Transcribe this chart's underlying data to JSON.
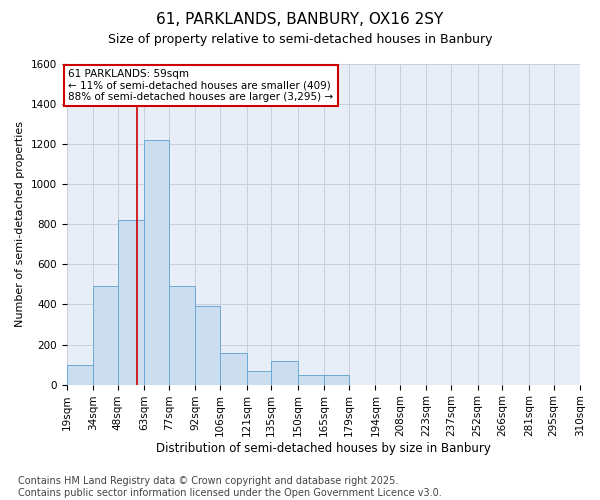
{
  "title": "61, PARKLANDS, BANBURY, OX16 2SY",
  "subtitle": "Size of property relative to semi-detached houses in Banbury",
  "xlabel": "Distribution of semi-detached houses by size in Banbury",
  "ylabel": "Number of semi-detached properties",
  "bar_color": "#ccddf0",
  "bar_edge_color": "#6aaad4",
  "grid_color": "#c8d0de",
  "background_color": "#e8eef8",
  "annotation_text": "61 PARKLANDS: 59sqm\n← 11% of semi-detached houses are smaller (409)\n88% of semi-detached houses are larger (3,295) →",
  "vline_color": "#cc0000",
  "bin_edges": [
    19,
    34,
    48,
    63,
    77,
    92,
    106,
    121,
    135,
    150,
    165,
    179,
    194,
    208,
    223,
    237,
    252,
    266,
    281,
    295,
    310
  ],
  "bin_labels": [
    "19sqm",
    "34sqm",
    "48sqm",
    "63sqm",
    "77sqm",
    "92sqm",
    "106sqm",
    "121sqm",
    "135sqm",
    "150sqm",
    "165sqm",
    "179sqm",
    "194sqm",
    "208sqm",
    "223sqm",
    "237sqm",
    "252sqm",
    "266sqm",
    "281sqm",
    "295sqm",
    "310sqm"
  ],
  "counts": [
    100,
    490,
    820,
    1220,
    490,
    390,
    160,
    70,
    120,
    50,
    50,
    0,
    0,
    0,
    0,
    0,
    0,
    0,
    0,
    0
  ],
  "vline_x": 59,
  "ylim": [
    0,
    1600
  ],
  "yticks": [
    0,
    200,
    400,
    600,
    800,
    1000,
    1200,
    1400,
    1600
  ],
  "footnote": "Contains HM Land Registry data © Crown copyright and database right 2025.\nContains public sector information licensed under the Open Government Licence v3.0.",
  "footnote_fontsize": 7.0,
  "title_fontsize": 11,
  "subtitle_fontsize": 9,
  "xlabel_fontsize": 8.5,
  "ylabel_fontsize": 8.0,
  "tick_fontsize": 7.5,
  "annotation_fontsize": 7.5
}
